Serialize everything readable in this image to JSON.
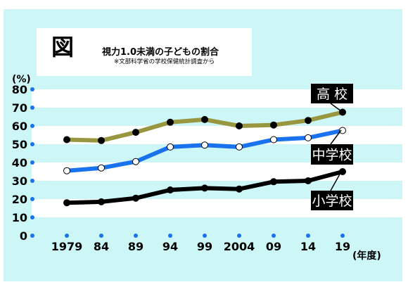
{
  "header": {
    "fig_label": "図",
    "title": "視力1.0未満の子どもの割合",
    "subtitle": "※文部科学省の学校保健統計調査から"
  },
  "chart_data": {
    "type": "line",
    "title": "視力1.0未満の子どもの割合",
    "y_unit": "(%)",
    "x_unit": "(年度)",
    "categories": [
      "1979",
      "84",
      "89",
      "94",
      "99",
      "2004",
      "09",
      "14",
      "19"
    ],
    "ylim": [
      0,
      80
    ],
    "yticks": [
      0,
      10,
      20,
      30,
      40,
      50,
      60,
      70,
      80
    ],
    "grid": "horizontal bands",
    "series": [
      {
        "name": "高 校",
        "color": "#98963e",
        "marker": "#000000",
        "values": [
          52.5,
          52.0,
          56.5,
          62.0,
          63.5,
          60.0,
          60.5,
          63.0,
          67.5
        ]
      },
      {
        "name": "中学校",
        "color": "#1a73ee",
        "marker": "#ffffff",
        "values": [
          35.5,
          37.0,
          40.5,
          48.5,
          49.5,
          48.5,
          52.5,
          53.5,
          57.5
        ]
      },
      {
        "name": "小学校",
        "color": "#000000",
        "marker": "#000000",
        "values": [
          18.0,
          18.5,
          20.5,
          25.0,
          26.0,
          25.5,
          29.5,
          30.0,
          35.0
        ]
      }
    ]
  }
}
